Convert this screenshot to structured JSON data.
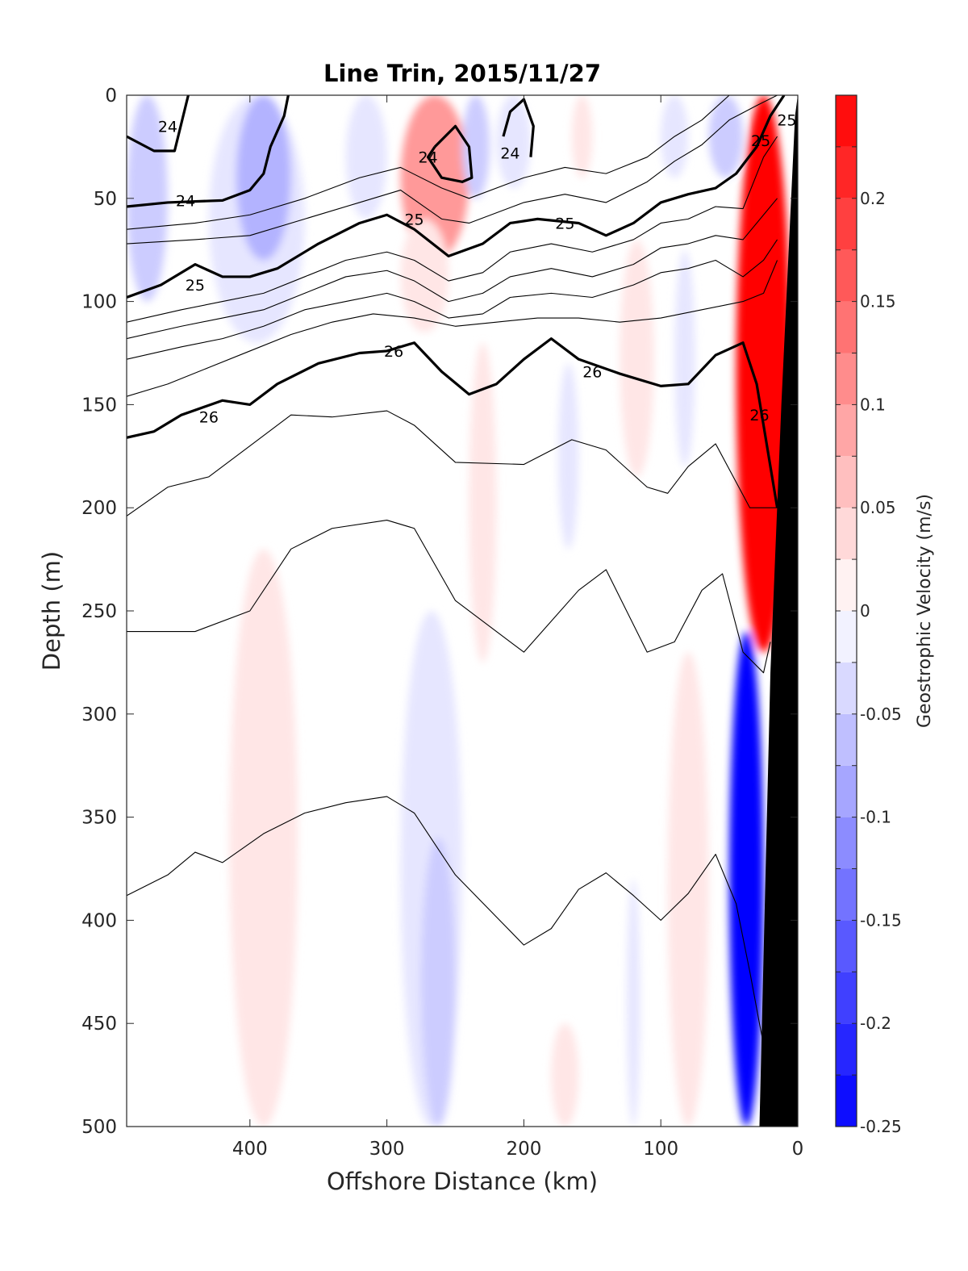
{
  "chart_data": {
    "type": "contour",
    "title": "Line Trin, 2015/11/27",
    "xlabel": "Offshore Distance (km)",
    "ylabel": "Depth (m)",
    "x_reversed": true,
    "xlim": [
      490,
      0
    ],
    "ylim": [
      0,
      500
    ],
    "y_reversed": true,
    "xticks": [
      400,
      300,
      200,
      100,
      0
    ],
    "yticks": [
      0,
      50,
      100,
      150,
      200,
      250,
      300,
      350,
      400,
      450,
      500
    ],
    "colorbar": {
      "label": "Geostrophic Velocity (m/s)",
      "range": [
        -0.25,
        0.25
      ],
      "step": 0.025,
      "ticks": [
        0.2,
        0.15,
        0.1,
        0.05,
        0,
        -0.05,
        -0.1,
        -0.15,
        -0.2,
        -0.25
      ],
      "colormap": "blue-white-red",
      "neg_color": "#0000ff",
      "pos_color": "#ff0000"
    },
    "velocity_patches": [
      {
        "sign": -1,
        "level": 2,
        "x": [
          490,
          460
        ],
        "depth": [
          0,
          100
        ]
      },
      {
        "sign": -1,
        "level": 1,
        "x": [
          430,
          360
        ],
        "depth": [
          0,
          120
        ]
      },
      {
        "sign": -1,
        "level": 3,
        "x": [
          410,
          370
        ],
        "depth": [
          0,
          80
        ]
      },
      {
        "sign": -1,
        "level": 1,
        "x": [
          330,
          300
        ],
        "depth": [
          0,
          60
        ]
      },
      {
        "sign": 1,
        "level": 4,
        "x": [
          290,
          240
        ],
        "depth": [
          0,
          80
        ]
      },
      {
        "sign": 1,
        "level": 1,
        "x": [
          290,
          255
        ],
        "depth": [
          60,
          115
        ]
      },
      {
        "sign": -1,
        "level": 2,
        "x": [
          245,
          225
        ],
        "depth": [
          0,
          50
        ]
      },
      {
        "sign": -1,
        "level": 1,
        "x": [
          220,
          195
        ],
        "depth": [
          0,
          45
        ]
      },
      {
        "sign": 1,
        "level": 1,
        "x": [
          165,
          150
        ],
        "depth": [
          0,
          40
        ]
      },
      {
        "sign": -1,
        "level": 1,
        "x": [
          100,
          80
        ],
        "depth": [
          0,
          40
        ]
      },
      {
        "sign": -1,
        "level": 2,
        "x": [
          65,
          40
        ],
        "depth": [
          0,
          40
        ]
      },
      {
        "sign": 1,
        "level": 1,
        "x": [
          130,
          105
        ],
        "depth": [
          70,
          185
        ]
      },
      {
        "sign": 1,
        "level": 1,
        "x": [
          240,
          220
        ],
        "depth": [
          120,
          275
        ]
      },
      {
        "sign": -1,
        "level": 1,
        "x": [
          175,
          160
        ],
        "depth": [
          130,
          220
        ]
      },
      {
        "sign": -1,
        "level": 1,
        "x": [
          90,
          75
        ],
        "depth": [
          75,
          180
        ]
      },
      {
        "sign": 1,
        "level": 10,
        "x": [
          45,
          5
        ],
        "depth": [
          0,
          270
        ]
      },
      {
        "sign": 1,
        "level": 1,
        "x": [
          415,
          365
        ],
        "depth": [
          220,
          500
        ]
      },
      {
        "sign": -1,
        "level": 1,
        "x": [
          290,
          245
        ],
        "depth": [
          250,
          500
        ]
      },
      {
        "sign": -1,
        "level": 2,
        "x": [
          275,
          250
        ],
        "depth": [
          360,
          500
        ]
      },
      {
        "sign": 1,
        "level": 1,
        "x": [
          95,
          65
        ],
        "depth": [
          270,
          500
        ]
      },
      {
        "sign": -1,
        "level": 1,
        "x": [
          125,
          115
        ],
        "depth": [
          380,
          500
        ]
      },
      {
        "sign": 1,
        "level": 1,
        "x": [
          180,
          160
        ],
        "depth": [
          450,
          500
        ]
      },
      {
        "sign": -1,
        "level": 10,
        "x": [
          50,
          25
        ],
        "depth": [
          260,
          500
        ]
      }
    ],
    "isopycnals": [
      {
        "level": 24,
        "bold": true,
        "labels": [
          {
            "x": 460,
            "depth": 15,
            "text": "24"
          }
        ],
        "x": [
          490,
          470,
          455,
          445
        ],
        "depth": [
          20,
          27,
          27,
          0
        ]
      },
      {
        "level": 24,
        "bold": true,
        "labels": [
          {
            "x": 447,
            "depth": 51,
            "text": "24"
          }
        ],
        "x": [
          490,
          460,
          420,
          400,
          390,
          385,
          375,
          372
        ],
        "depth": [
          54,
          52,
          51,
          46,
          38,
          25,
          10,
          0
        ]
      },
      {
        "level": 24,
        "bold": true,
        "closed": true,
        "labels": [
          {
            "x": 270,
            "depth": 30,
            "text": "24"
          }
        ],
        "x": [
          265,
          250,
          240,
          238,
          245,
          260,
          270,
          265
        ],
        "depth": [
          25,
          15,
          25,
          40,
          42,
          40,
          30,
          25
        ]
      },
      {
        "level": 24,
        "bold": true,
        "labels": [
          {
            "x": 210,
            "depth": 28,
            "text": "24"
          }
        ],
        "x": [
          215,
          210,
          200,
          193,
          195
        ],
        "depth": [
          20,
          8,
          2,
          15,
          30
        ]
      },
      {
        "level": 25,
        "bold": true,
        "labels": [
          {
            "x": 440,
            "depth": 92,
            "text": "25"
          },
          {
            "x": 280,
            "depth": 60,
            "text": "25"
          },
          {
            "x": 170,
            "depth": 62,
            "text": "25"
          },
          {
            "x": 27,
            "depth": 22,
            "text": "25"
          },
          {
            "x": 8,
            "depth": 12,
            "text": "25"
          }
        ],
        "x": [
          490,
          465,
          440,
          420,
          400,
          380,
          350,
          320,
          300,
          280,
          255,
          230,
          210,
          190,
          160,
          140,
          120,
          100,
          80,
          60,
          45,
          30,
          20,
          10
        ],
        "depth": [
          98,
          92,
          82,
          88,
          88,
          84,
          72,
          62,
          58,
          65,
          78,
          72,
          62,
          60,
          62,
          68,
          62,
          52,
          48,
          45,
          38,
          25,
          10,
          0
        ]
      },
      {
        "level": 26,
        "bold": true,
        "labels": [
          {
            "x": 430,
            "depth": 156,
            "text": "26"
          },
          {
            "x": 295,
            "depth": 124,
            "text": "26"
          },
          {
            "x": 150,
            "depth": 134,
            "text": "26"
          },
          {
            "x": 28,
            "depth": 155,
            "text": "26"
          }
        ],
        "x": [
          490,
          470,
          450,
          420,
          400,
          380,
          350,
          320,
          300,
          280,
          260,
          240,
          220,
          200,
          180,
          160,
          130,
          100,
          80,
          60,
          40,
          30,
          20,
          15
        ],
        "depth": [
          166,
          163,
          155,
          148,
          150,
          140,
          130,
          125,
          124,
          120,
          134,
          145,
          140,
          128,
          118,
          128,
          135,
          141,
          140,
          126,
          120,
          140,
          180,
          200
        ]
      },
      {
        "level": 25.2,
        "bold": false,
        "x": [
          490,
          440,
          400,
          360,
          320,
          290,
          260,
          240,
          200,
          170,
          140,
          110,
          90,
          70,
          50,
          30,
          15,
          5
        ],
        "depth": [
          65,
          62,
          58,
          50,
          40,
          35,
          45,
          50,
          40,
          35,
          38,
          30,
          20,
          12,
          0,
          -5,
          -8,
          -10
        ]
      },
      {
        "level": 25.4,
        "bold": false,
        "x": [
          490,
          440,
          400,
          360,
          320,
          290,
          260,
          240,
          200,
          170,
          140,
          110,
          90,
          70,
          50,
          30,
          15
        ],
        "depth": [
          72,
          70,
          68,
          60,
          52,
          46,
          60,
          62,
          52,
          48,
          52,
          42,
          32,
          24,
          12,
          5,
          0
        ]
      },
      {
        "level": 25.2,
        "bold": false,
        "x": [
          490,
          450,
          420,
          390,
          360,
          330,
          300,
          280,
          255,
          230,
          210,
          180,
          150,
          120,
          100,
          80,
          60,
          40,
          25,
          15
        ],
        "depth": [
          110,
          104,
          100,
          96,
          88,
          80,
          76,
          80,
          90,
          86,
          76,
          72,
          76,
          70,
          62,
          60,
          54,
          55,
          30,
          20
        ]
      },
      {
        "level": 25.4,
        "bold": false,
        "x": [
          490,
          450,
          420,
          390,
          360,
          330,
          300,
          280,
          255,
          230,
          210,
          180,
          150,
          120,
          100,
          80,
          60,
          40,
          25,
          15
        ],
        "depth": [
          118,
          112,
          108,
          104,
          96,
          88,
          85,
          90,
          100,
          96,
          88,
          84,
          88,
          82,
          74,
          72,
          68,
          70,
          58,
          50
        ]
      },
      {
        "level": 25.6,
        "bold": false,
        "x": [
          490,
          450,
          420,
          390,
          360,
          330,
          300,
          280,
          255,
          230,
          210,
          180,
          150,
          120,
          100,
          80,
          60,
          40,
          25,
          15
        ],
        "depth": [
          128,
          122,
          118,
          112,
          104,
          100,
          96,
          100,
          108,
          106,
          98,
          96,
          98,
          92,
          86,
          84,
          80,
          88,
          80,
          70
        ]
      },
      {
        "level": 25.8,
        "bold": false,
        "x": [
          490,
          460,
          430,
          400,
          370,
          340,
          310,
          280,
          250,
          220,
          190,
          160,
          130,
          100,
          70,
          40,
          25,
          15
        ],
        "depth": [
          146,
          140,
          132,
          124,
          116,
          110,
          106,
          108,
          112,
          110,
          108,
          108,
          110,
          108,
          104,
          100,
          96,
          80
        ]
      },
      {
        "level": 26.2,
        "bold": false,
        "x": [
          490,
          460,
          430,
          400,
          370,
          340,
          300,
          280,
          250,
          200,
          165,
          140,
          110,
          95,
          80,
          60,
          35,
          15
        ],
        "depth": [
          204,
          190,
          185,
          170,
          155,
          156,
          153,
          160,
          178,
          179,
          167,
          172,
          190,
          193,
          180,
          169,
          200,
          200
        ]
      },
      {
        "level": 26.4,
        "bold": false,
        "x": [
          490,
          440,
          400,
          370,
          340,
          300,
          280,
          250,
          200,
          160,
          140,
          110,
          90,
          70,
          55,
          40,
          25,
          20
        ],
        "depth": [
          260,
          260,
          250,
          220,
          210,
          206,
          210,
          245,
          270,
          240,
          230,
          270,
          265,
          240,
          232,
          270,
          280,
          265
        ]
      },
      {
        "level": 26.6,
        "bold": false,
        "x": [
          490,
          460,
          440,
          420,
          390,
          360,
          330,
          300,
          280,
          250,
          200,
          180,
          160,
          140,
          120,
          100,
          80,
          60,
          45,
          35,
          28,
          22
        ],
        "depth": [
          388,
          378,
          367,
          372,
          358,
          348,
          343,
          340,
          348,
          378,
          412,
          404,
          385,
          377,
          388,
          400,
          387,
          368,
          392,
          425,
          450,
          470
        ]
      }
    ]
  }
}
